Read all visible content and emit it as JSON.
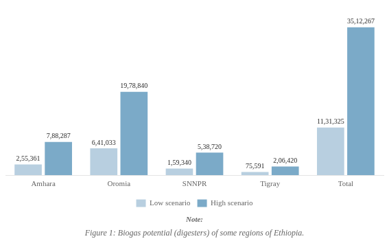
{
  "chart_data": {
    "type": "bar",
    "title": "Figure 1: Biogas potential (digesters) of some regions of Ethiopia.",
    "annotations": [
      "Note:"
    ],
    "categories": [
      "Amhara",
      "Oromia",
      "SNNPR",
      "Tigray",
      "Total"
    ],
    "series": [
      {
        "name": "Low scenario",
        "color": "#b8cfe0",
        "values": [
          255361,
          641033,
          159340,
          75591,
          1131325
        ],
        "value_labels": [
          "2,55,361",
          "6,41,033",
          "1,59,340",
          "75,591",
          "11,31,325"
        ]
      },
      {
        "name": "High scenario",
        "color": "#7baac8",
        "values": [
          788287,
          1978840,
          538720,
          206420,
          3512267
        ],
        "value_labels": [
          "7,88,287",
          "19,78,840",
          "5,38,720",
          "2,06,420",
          "35,12,267"
        ]
      }
    ],
    "ylim": [
      0,
      3900000
    ],
    "grid": false,
    "legend": "bottom",
    "data_labels": true,
    "tick_labels": "x"
  }
}
